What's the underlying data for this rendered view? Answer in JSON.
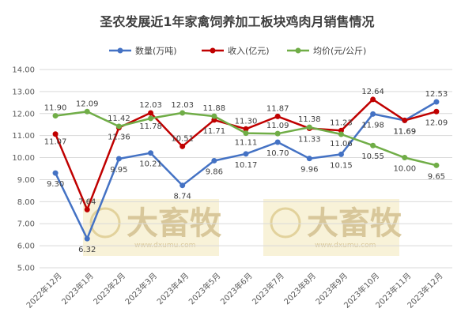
{
  "chart_data": {
    "type": "line",
    "title": "圣农发展近1年家禽饲养加工板块鸡肉月销售情况",
    "xlabel": "",
    "ylabel": "",
    "ylim": [
      5.0,
      14.0
    ],
    "ytick_step": 1,
    "yticks": [
      "5.00",
      "6.00",
      "7.00",
      "8.00",
      "9.00",
      "10.00",
      "11.00",
      "12.00",
      "13.00",
      "14.00"
    ],
    "grid": true,
    "legend_position": "top",
    "categories": [
      "2022年12月",
      "2023年1月",
      "2023年2月",
      "2023年3月",
      "2023年4月",
      "2023年5月",
      "2023年6月",
      "2023年7月",
      "2023年8月",
      "2023年9月",
      "2023年10月",
      "2023年11月",
      "2023年12月"
    ],
    "series": [
      {
        "name": "数量(万吨)",
        "color": "#4472c4",
        "values": [
          9.3,
          6.32,
          9.95,
          10.21,
          8.74,
          9.86,
          10.17,
          10.7,
          9.96,
          10.15,
          11.98,
          11.69,
          12.53
        ],
        "labels": [
          "9.30",
          "6.32",
          "9.95",
          "10.21",
          "8.74",
          "9.86",
          "10.17",
          "10.70",
          "9.96",
          "10.15",
          "11.98",
          "11.69",
          "12.53"
        ]
      },
      {
        "name": "收入(亿元)",
        "color": "#c00000",
        "values": [
          11.07,
          7.64,
          11.36,
          12.03,
          10.51,
          11.71,
          11.3,
          11.87,
          11.33,
          11.23,
          12.64,
          11.69,
          12.09
        ],
        "labels": [
          "11.07",
          "7.64",
          "11.36",
          "12.03",
          "10.51",
          "11.71",
          "11.30",
          "11.87",
          "11.33",
          "11.23",
          "12.64",
          "11.69",
          "12.09"
        ]
      },
      {
        "name": "均价(元/公斤)",
        "color": "#70ad47",
        "values": [
          11.9,
          12.09,
          11.42,
          11.78,
          12.03,
          11.88,
          11.11,
          11.09,
          11.38,
          11.06,
          10.55,
          10.0,
          9.65
        ],
        "labels": [
          "11.90",
          "12.09",
          "11.42",
          "11.78",
          "12.03",
          "11.88",
          "11.11",
          "11.09",
          "11.38",
          "11.06",
          "10.55",
          "10.00",
          "9.65"
        ]
      }
    ]
  },
  "watermark": {
    "text": "大畜牧",
    "sub": "www.dxumu.com",
    "color": "#f5edc8"
  }
}
